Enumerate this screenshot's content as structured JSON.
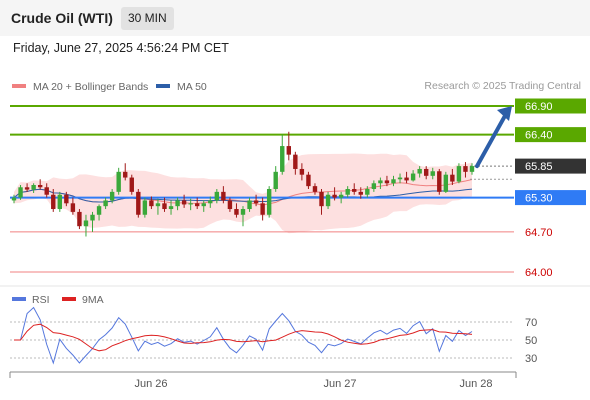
{
  "header": {
    "title": "Crude Oil (WTI)",
    "timeframe": "30 MIN"
  },
  "datetime": "Friday, June 27, 2025 4:56:24 PM CET",
  "credit": "Research © 2025 Trading Central",
  "colors": {
    "up": "#3aa83a",
    "down": "#a01818",
    "resistance": "#5aa800",
    "support": "#2f7bf5",
    "minor": "#f08080",
    "forecast": "#2c5ea8",
    "rsi": "#5577dd",
    "ma9": "#dd2222",
    "ma20": "#f08080",
    "ma50": "#2c5ea8",
    "band": "#fde0e0",
    "price": "#333333"
  },
  "chart_data": [
    {
      "type": "candlestick",
      "legend": [
        {
          "label": "MA 20 + Bollinger Bands",
          "color": "#f08080"
        },
        {
          "label": "MA 50",
          "color": "#2c5ea8"
        }
      ],
      "x_ticks": [
        "Jun 26",
        "Jun 27",
        "Jun 28"
      ],
      "ylim": [
        63.8,
        67.1
      ],
      "current_price": 65.85,
      "levels": [
        {
          "value": 66.9,
          "label": "66.90",
          "type": "resistance"
        },
        {
          "value": 66.4,
          "label": "66.40",
          "type": "resistance"
        },
        {
          "value": 65.85,
          "label": "65.85",
          "type": "price"
        },
        {
          "value": 65.3,
          "label": "65.30",
          "type": "support"
        },
        {
          "value": 64.7,
          "label": "64.70",
          "type": "minor"
        },
        {
          "value": 64.0,
          "label": "64.00",
          "type": "minor"
        }
      ],
      "forecast": {
        "from": 65.85,
        "to": 66.9,
        "direction": "up"
      },
      "ohlc": [
        [
          65.25,
          65.35,
          65.2,
          65.3
        ],
        [
          65.3,
          65.52,
          65.26,
          65.48
        ],
        [
          65.48,
          65.55,
          65.4,
          65.44
        ],
        [
          65.44,
          65.55,
          65.38,
          65.52
        ],
        [
          65.52,
          65.62,
          65.44,
          65.48
        ],
        [
          65.48,
          65.55,
          65.3,
          65.35
        ],
        [
          65.35,
          65.45,
          65.05,
          65.1
        ],
        [
          65.1,
          65.4,
          65.05,
          65.35
        ],
        [
          65.35,
          65.4,
          65.15,
          65.2
        ],
        [
          65.2,
          65.3,
          65.0,
          65.05
        ],
        [
          65.05,
          65.1,
          64.75,
          64.8
        ],
        [
          64.8,
          65.0,
          64.62,
          64.9
        ],
        [
          64.9,
          65.05,
          64.7,
          65.0
        ],
        [
          65.0,
          65.18,
          64.9,
          65.15
        ],
        [
          65.15,
          65.3,
          65.1,
          65.25
        ],
        [
          65.25,
          65.45,
          65.2,
          65.4
        ],
        [
          65.4,
          65.82,
          65.35,
          65.75
        ],
        [
          65.75,
          65.9,
          65.6,
          65.65
        ],
        [
          65.65,
          65.7,
          65.35,
          65.4
        ],
        [
          65.4,
          65.45,
          64.95,
          65.0
        ],
        [
          65.0,
          65.3,
          64.95,
          65.25
        ],
        [
          65.25,
          65.32,
          65.1,
          65.15
        ],
        [
          65.15,
          65.28,
          65.0,
          65.2
        ],
        [
          65.2,
          65.3,
          65.05,
          65.1
        ],
        [
          65.1,
          65.25,
          65.0,
          65.15
        ],
        [
          65.15,
          65.3,
          65.08,
          65.25
        ],
        [
          65.25,
          65.35,
          65.12,
          65.18
        ],
        [
          65.18,
          65.28,
          65.08,
          65.2
        ],
        [
          65.2,
          65.3,
          65.1,
          65.15
        ],
        [
          65.15,
          65.25,
          65.05,
          65.2
        ],
        [
          65.2,
          65.32,
          65.12,
          65.25
        ],
        [
          65.25,
          65.45,
          65.2,
          65.4
        ],
        [
          65.4,
          65.5,
          65.2,
          65.25
        ],
        [
          65.25,
          65.3,
          65.05,
          65.1
        ],
        [
          65.1,
          65.2,
          64.95,
          65.0
        ],
        [
          65.0,
          65.15,
          64.8,
          65.1
        ],
        [
          65.1,
          65.3,
          65.05,
          65.25
        ],
        [
          65.25,
          65.35,
          65.15,
          65.2
        ],
        [
          65.2,
          65.3,
          64.9,
          65.0
        ],
        [
          65.0,
          65.5,
          64.95,
          65.45
        ],
        [
          65.45,
          65.85,
          65.4,
          65.75
        ],
        [
          65.75,
          66.4,
          65.7,
          66.2
        ],
        [
          66.2,
          66.45,
          65.95,
          66.05
        ],
        [
          66.05,
          66.1,
          65.7,
          65.8
        ],
        [
          65.8,
          65.9,
          65.6,
          65.7
        ],
        [
          65.7,
          65.75,
          65.45,
          65.5
        ],
        [
          65.5,
          65.55,
          65.35,
          65.4
        ],
        [
          65.4,
          65.45,
          65.0,
          65.15
        ],
        [
          65.15,
          65.4,
          65.1,
          65.35
        ],
        [
          65.35,
          65.48,
          65.25,
          65.3
        ],
        [
          65.3,
          65.4,
          65.2,
          65.35
        ],
        [
          65.35,
          65.5,
          65.3,
          65.45
        ],
        [
          65.45,
          65.55,
          65.35,
          65.4
        ],
        [
          65.4,
          65.48,
          65.28,
          65.35
        ],
        [
          65.35,
          65.5,
          65.3,
          65.45
        ],
        [
          65.45,
          65.6,
          65.4,
          65.55
        ],
        [
          65.55,
          65.65,
          65.45,
          65.6
        ],
        [
          65.6,
          65.68,
          65.5,
          65.55
        ],
        [
          65.55,
          65.68,
          65.5,
          65.62
        ],
        [
          65.62,
          65.72,
          65.55,
          65.65
        ],
        [
          65.65,
          65.75,
          65.55,
          65.6
        ],
        [
          65.6,
          65.78,
          65.58,
          65.72
        ],
        [
          65.72,
          65.85,
          65.65,
          65.8
        ],
        [
          65.8,
          65.85,
          65.62,
          65.68
        ],
        [
          65.68,
          65.82,
          65.62,
          65.76
        ],
        [
          65.76,
          65.8,
          65.35,
          65.4
        ],
        [
          65.4,
          65.75,
          65.38,
          65.7
        ],
        [
          65.7,
          65.8,
          65.52,
          65.58
        ],
        [
          65.58,
          65.9,
          65.55,
          65.85
        ],
        [
          65.85,
          65.92,
          65.65,
          65.75
        ],
        [
          65.75,
          65.9,
          65.7,
          65.85
        ]
      ]
    },
    {
      "type": "line",
      "series": [
        {
          "name": "RSI",
          "color": "#5577dd"
        },
        {
          "name": "9MA",
          "color": "#dd2222"
        }
      ],
      "y_ticks": [
        70,
        50,
        30
      ],
      "ylim": [
        20,
        80
      ]
    }
  ]
}
